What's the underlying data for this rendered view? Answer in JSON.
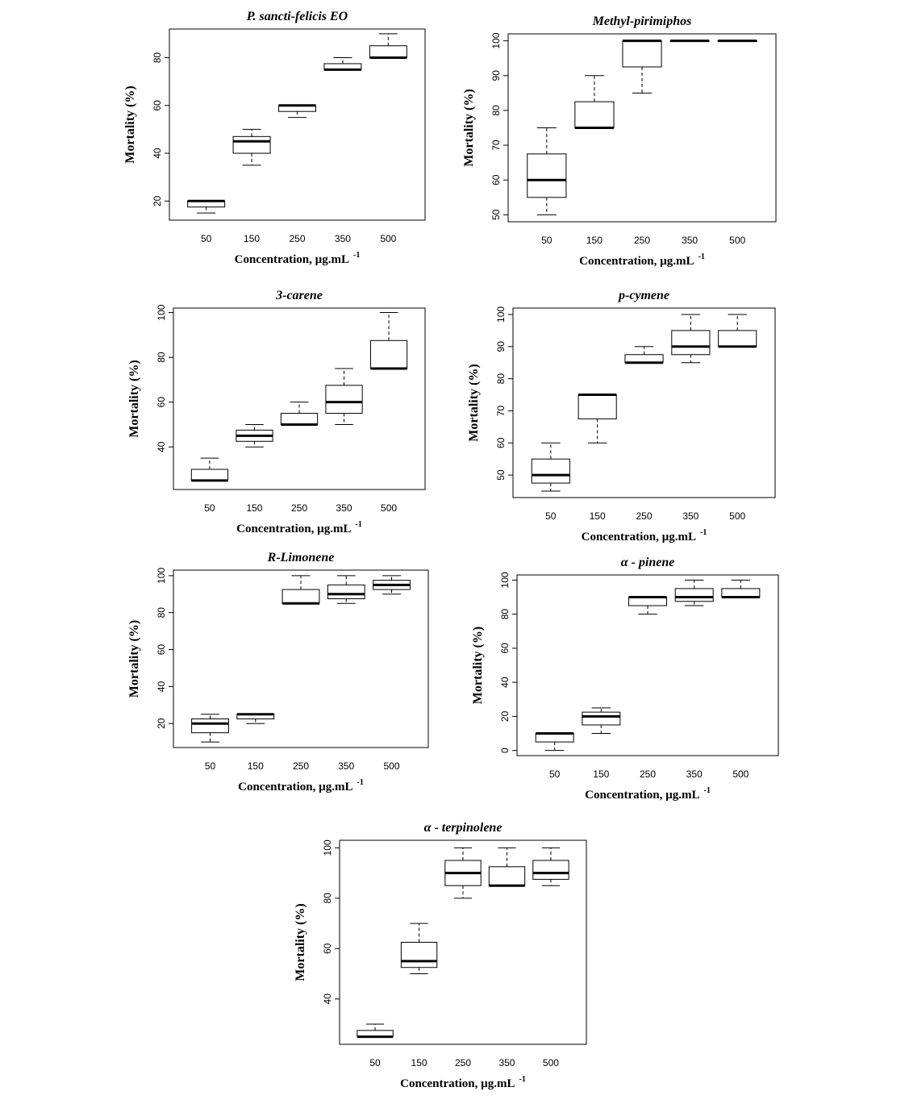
{
  "chart_data": [
    {
      "type": "box",
      "title": "P. sancti-felicis EO",
      "xlabel": "Concentration, µg.mL",
      "xlabel_superscript": "-1",
      "ylabel": "Mortality (%)",
      "categories": [
        "50",
        "150",
        "250",
        "350",
        "500"
      ],
      "ylim": [
        12,
        92
      ],
      "yticks": [
        20,
        40,
        60,
        80
      ],
      "boxes": [
        {
          "min": 15,
          "q1": 17.5,
          "median": 20,
          "q3": 20,
          "max": 20
        },
        {
          "min": 35,
          "q1": 40,
          "median": 45,
          "q3": 47,
          "max": 50
        },
        {
          "min": 55,
          "q1": 57.5,
          "median": 60,
          "q3": 60,
          "max": 60
        },
        {
          "min": 75,
          "q1": 75,
          "median": 75,
          "q3": 77.5,
          "max": 80
        },
        {
          "min": 80,
          "q1": 80,
          "median": 80,
          "q3": 85,
          "max": 90
        }
      ]
    },
    {
      "type": "box",
      "title": "Methyl-pirimiphos",
      "xlabel": "Concentration, µg.mL",
      "xlabel_superscript": "-1",
      "ylabel": "Mortality (%)",
      "categories": [
        "50",
        "150",
        "250",
        "350",
        "500"
      ],
      "ylim": [
        48,
        102
      ],
      "yticks": [
        50,
        60,
        70,
        80,
        90,
        100
      ],
      "boxes": [
        {
          "min": 50,
          "q1": 55,
          "median": 60,
          "q3": 67.5,
          "max": 75
        },
        {
          "min": 75,
          "q1": 75,
          "median": 75,
          "q3": 82.5,
          "max": 90
        },
        {
          "min": 85,
          "q1": 92.5,
          "median": 100,
          "q3": 100,
          "max": 100
        },
        {
          "min": 100,
          "q1": 100,
          "median": 100,
          "q3": 100,
          "max": 100
        },
        {
          "min": 100,
          "q1": 100,
          "median": 100,
          "q3": 100,
          "max": 100
        }
      ]
    },
    {
      "type": "box",
      "title": "3-carene",
      "xlabel": "Concentration, µg.mL",
      "xlabel_superscript": "-1",
      "ylabel": "Mortality (%)",
      "categories": [
        "50",
        "150",
        "250",
        "350",
        "500"
      ],
      "ylim": [
        21,
        102
      ],
      "yticks": [
        40,
        60,
        80,
        100
      ],
      "boxes": [
        {
          "min": 25,
          "q1": 25,
          "median": 25,
          "q3": 30,
          "max": 35
        },
        {
          "min": 40,
          "q1": 42.5,
          "median": 45,
          "q3": 47.5,
          "max": 50
        },
        {
          "min": 50,
          "q1": 50,
          "median": 50,
          "q3": 55,
          "max": 60
        },
        {
          "min": 50,
          "q1": 55,
          "median": 60,
          "q3": 67.5,
          "max": 75
        },
        {
          "min": 75,
          "q1": 75,
          "median": 75,
          "q3": 87.5,
          "max": 100
        }
      ]
    },
    {
      "type": "box",
      "title": "p-cymene",
      "xlabel": "Concentration, µg.mL",
      "xlabel_superscript": "-1",
      "ylabel": "Mortality (%)",
      "categories": [
        "50",
        "150",
        "250",
        "350",
        "500"
      ],
      "ylim": [
        43,
        102
      ],
      "yticks": [
        50,
        60,
        70,
        80,
        90,
        100
      ],
      "boxes": [
        {
          "min": 45,
          "q1": 47.5,
          "median": 50,
          "q3": 55,
          "max": 60
        },
        {
          "min": 60,
          "q1": 67.5,
          "median": 75,
          "q3": 75,
          "max": 75
        },
        {
          "min": 85,
          "q1": 85,
          "median": 85,
          "q3": 87.5,
          "max": 90
        },
        {
          "min": 85,
          "q1": 87.5,
          "median": 90,
          "q3": 95,
          "max": 100
        },
        {
          "min": 90,
          "q1": 90,
          "median": 90,
          "q3": 95,
          "max": 100
        }
      ]
    },
    {
      "type": "box",
      "title": "R-Limonene",
      "xlabel": "Concentration, µg.mL",
      "xlabel_superscript": "-1",
      "ylabel": "Mortality (%)",
      "categories": [
        "50",
        "150",
        "250",
        "350",
        "500"
      ],
      "ylim": [
        7,
        103
      ],
      "yticks": [
        20,
        40,
        60,
        80,
        100
      ],
      "boxes": [
        {
          "min": 10,
          "q1": 15,
          "median": 20,
          "q3": 22.5,
          "max": 25
        },
        {
          "min": 20,
          "q1": 22.5,
          "median": 25,
          "q3": 25,
          "max": 25
        },
        {
          "min": 85,
          "q1": 85,
          "median": 85,
          "q3": 92.5,
          "max": 100
        },
        {
          "min": 85,
          "q1": 87.5,
          "median": 90,
          "q3": 95,
          "max": 100
        },
        {
          "min": 90,
          "q1": 92.5,
          "median": 95,
          "q3": 97.5,
          "max": 100
        }
      ]
    },
    {
      "type": "box",
      "title": "α - pinene",
      "xlabel": "Concentration, µg.mL",
      "xlabel_superscript": "-1",
      "ylabel": "Mortality (%)",
      "categories": [
        "50",
        "150",
        "250",
        "350",
        "500"
      ],
      "ylim": [
        -3,
        103
      ],
      "yticks": [
        0,
        20,
        40,
        60,
        80,
        100
      ],
      "boxes": [
        {
          "min": 0,
          "q1": 5,
          "median": 10,
          "q3": 10,
          "max": 10
        },
        {
          "min": 10,
          "q1": 15,
          "median": 20,
          "q3": 22.5,
          "max": 25
        },
        {
          "min": 80,
          "q1": 85,
          "median": 90,
          "q3": 90,
          "max": 90
        },
        {
          "min": 85,
          "q1": 87.5,
          "median": 90,
          "q3": 95,
          "max": 100
        },
        {
          "min": 90,
          "q1": 90,
          "median": 90,
          "q3": 95,
          "max": 100
        }
      ]
    },
    {
      "type": "box",
      "title": "α - terpinolene",
      "xlabel": "Concentration, µg.mL",
      "xlabel_superscript": "-1",
      "ylabel": "Mortality (%)",
      "categories": [
        "50",
        "150",
        "250",
        "350",
        "500"
      ],
      "ylim": [
        22,
        103
      ],
      "yticks": [
        40,
        60,
        80,
        100
      ],
      "boxes": [
        {
          "min": 25,
          "q1": 25,
          "median": 25,
          "q3": 27.5,
          "max": 30
        },
        {
          "min": 50,
          "q1": 52.5,
          "median": 55,
          "q3": 62.5,
          "max": 70
        },
        {
          "min": 80,
          "q1": 85,
          "median": 90,
          "q3": 95,
          "max": 100
        },
        {
          "min": 85,
          "q1": 85,
          "median": 85,
          "q3": 92.5,
          "max": 100
        },
        {
          "min": 85,
          "q1": 87.5,
          "median": 90,
          "q3": 95,
          "max": 100
        }
      ]
    }
  ]
}
